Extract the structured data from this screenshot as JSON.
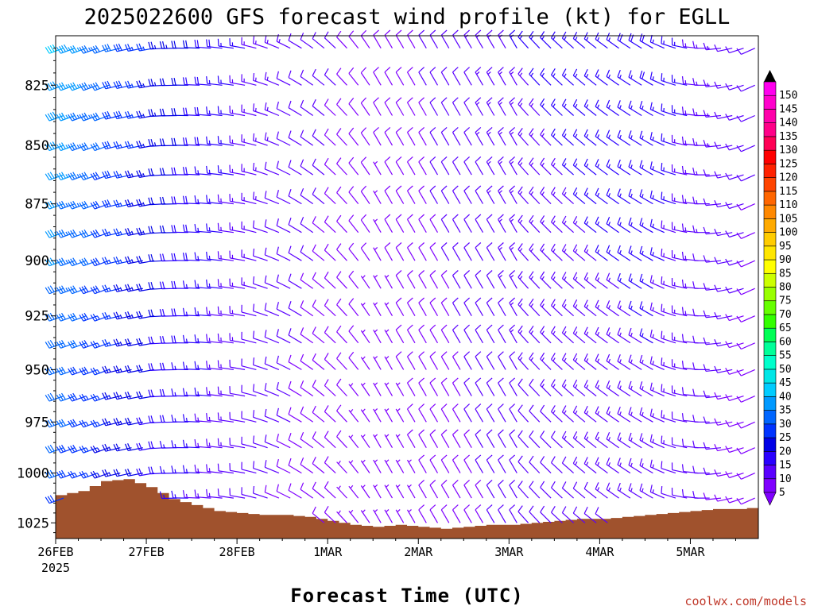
{
  "chart_data": {
    "type": "wind-barb-profile",
    "title": "2025022600 GFS forecast wind profile (kt) for EGLL",
    "xlabel": "Forecast Time (UTC)",
    "ylabel": "",
    "credit": "coolwx.com/models",
    "x_ticks": [
      "26FEB",
      "27FEB",
      "28FEB",
      "1MAR",
      "2MAR",
      "3MAR",
      "4MAR",
      "5MAR"
    ],
    "x_year_label": "2025",
    "x_range_days": [
      0,
      7.75
    ],
    "y_ticks": [
      825,
      850,
      875,
      900,
      925,
      950,
      975,
      1000,
      1025
    ],
    "y_tick_labels": [
      "825",
      "850",
      "875",
      "900",
      "925",
      "950",
      "975",
      "1000",
      "1025"
    ],
    "y_range_hpa": [
      805,
      1033
    ],
    "y_scale": "log-pressure",
    "levels_hpa": [
      810,
      825,
      837.5,
      850,
      862.5,
      875,
      887.5,
      900,
      912.5,
      925,
      937.5,
      950,
      962.5,
      975,
      987.5,
      1000,
      1012.5,
      1025
    ],
    "time_step_hours": 3,
    "surface_color": "#a0522d",
    "surface_pressure_hpa": {
      "t_days": [
        0,
        0.25,
        0.5,
        0.75,
        1.0,
        1.25,
        1.5,
        1.75,
        2.0,
        2.25,
        2.5,
        2.75,
        3.0,
        3.25,
        3.5,
        3.75,
        4.0,
        4.25,
        4.5,
        4.75,
        5.0,
        5.25,
        5.5,
        5.75,
        6.0,
        6.25,
        6.5,
        6.75,
        7.0,
        7.25,
        7.5,
        7.75
      ],
      "values": [
        1011,
        1009,
        1004,
        1003,
        1007,
        1013,
        1016,
        1019,
        1020,
        1021,
        1021,
        1022,
        1024,
        1026,
        1027,
        1026,
        1027,
        1028,
        1027,
        1026,
        1026,
        1025,
        1024,
        1023,
        1023,
        1022,
        1021,
        1020,
        1019,
        1018,
        1018,
        1017
      ]
    },
    "wind_segments": [
      {
        "t_days": [
          0,
          0.5
        ],
        "speed_kt": [
          40,
          32
        ],
        "dir_deg": [
          250,
          250
        ]
      },
      {
        "t_days": [
          0.5,
          1.0
        ],
        "speed_kt": [
          32,
          25
        ],
        "dir_deg": [
          255,
          260
        ]
      },
      {
        "t_days": [
          1.0,
          2.0
        ],
        "speed_kt": [
          25,
          15
        ],
        "dir_deg": [
          265,
          280
        ]
      },
      {
        "t_days": [
          2.0,
          3.5
        ],
        "speed_kt": [
          15,
          8
        ],
        "dir_deg": [
          280,
          330
        ]
      },
      {
        "t_days": [
          3.5,
          5.0
        ],
        "speed_kt": [
          8,
          15
        ],
        "dir_deg": [
          330,
          330
        ]
      },
      {
        "t_days": [
          5.0,
          6.5
        ],
        "speed_kt": [
          15,
          18
        ],
        "dir_deg": [
          320,
          300
        ]
      },
      {
        "t_days": [
          6.5,
          7.75
        ],
        "speed_kt": [
          18,
          10
        ],
        "dir_deg": [
          300,
          240
        ]
      }
    ],
    "colorbar": {
      "values": [
        5,
        10,
        15,
        20,
        25,
        30,
        35,
        40,
        45,
        50,
        55,
        60,
        65,
        70,
        75,
        80,
        85,
        90,
        95,
        100,
        105,
        110,
        115,
        120,
        125,
        130,
        135,
        140,
        145,
        150
      ],
      "labels": [
        "5",
        "10",
        "15",
        "20",
        "25",
        "30",
        "35",
        "40",
        "45",
        "50",
        "55",
        "60",
        "65",
        "70",
        "75",
        "80",
        "85",
        "90",
        "95",
        "100",
        "105",
        "110",
        "115",
        "120",
        "125",
        "130",
        "135",
        "140",
        "145",
        "150"
      ],
      "colors": [
        "#7f00ff",
        "#5a00ff",
        "#2a00ff",
        "#0000e6",
        "#0033ff",
        "#0066ff",
        "#0099ff",
        "#00ccff",
        "#00e6e6",
        "#00ffcc",
        "#00ff99",
        "#00ff55",
        "#33ff00",
        "#66ff00",
        "#99ff00",
        "#ccff00",
        "#ffff00",
        "#ffe600",
        "#ffcc00",
        "#ffaa00",
        "#ff8800",
        "#ff6600",
        "#ff4400",
        "#ff2200",
        "#ff0000",
        "#ff0055",
        "#ff0088",
        "#ff00aa",
        "#ff00cc",
        "#ff00ee"
      ]
    }
  }
}
